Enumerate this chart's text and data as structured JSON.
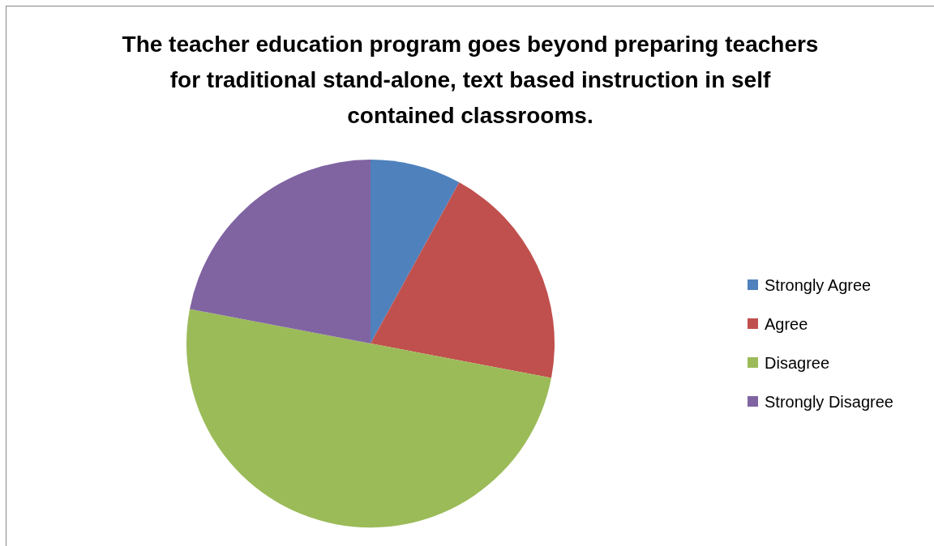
{
  "chart_data": {
    "type": "pie",
    "title": "The teacher education program goes beyond preparing teachers for traditional stand-alone, text based instruction in self contained classrooms.",
    "categories": [
      "Strongly Agree",
      "Agree",
      "Disagree",
      "Strongly Disagree"
    ],
    "values": [
      8,
      20,
      50,
      22
    ],
    "colors": [
      "#4f81bd",
      "#c0504d",
      "#9bbb59",
      "#8064a2"
    ],
    "legend": "right"
  }
}
